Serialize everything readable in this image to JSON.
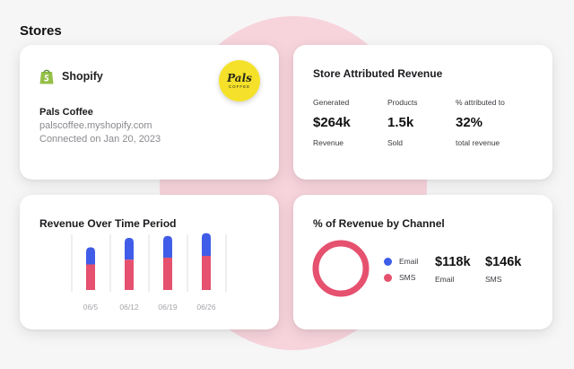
{
  "page": {
    "title": "Stores"
  },
  "shopify_card": {
    "platform": "Shopify",
    "store_name": "Pals Coffee",
    "domain": "palscoffee.myshopify.com",
    "connected": "Connected on Jan 20, 2023",
    "logo_text": "Pals",
    "logo_subtext": "COFFEE",
    "colors": {
      "shopify_green": "#95bf47",
      "logo_yellow": "#f5e12a"
    }
  },
  "attributed_card": {
    "title": "Store Attributed Revenue",
    "metrics": [
      {
        "label": "Generated",
        "value": "$264k",
        "sub": "Revenue"
      },
      {
        "label": "Products",
        "value": "1.5k",
        "sub": "Sold"
      },
      {
        "label": "% attributed to",
        "value": "32%",
        "sub": "total revenue"
      }
    ]
  },
  "overtime_card": {
    "title": "Revenue Over Time Period"
  },
  "chart_data": {
    "type": "bar",
    "stacked": true,
    "categories": [
      "06/5",
      "06/12",
      "06/19",
      "06/26"
    ],
    "series": [
      {
        "name": "SMS",
        "color": "#e5516e",
        "values": [
          27,
          32,
          34,
          36
        ]
      },
      {
        "name": "Email",
        "color": "#3f5de8",
        "values": [
          18,
          23,
          23,
          24
        ]
      }
    ],
    "ylim": [
      0,
      70
    ],
    "grid": false
  },
  "channel_card": {
    "title": "% of Revenue by Channel",
    "legend": [
      {
        "name": "Email",
        "color": "#3f5de8"
      },
      {
        "name": "SMS",
        "color": "#e5516e"
      }
    ],
    "metrics": [
      {
        "value": "$118k",
        "label": "Email"
      },
      {
        "value": "$146k",
        "label": "SMS"
      }
    ],
    "donut_color": "#e5516e"
  }
}
